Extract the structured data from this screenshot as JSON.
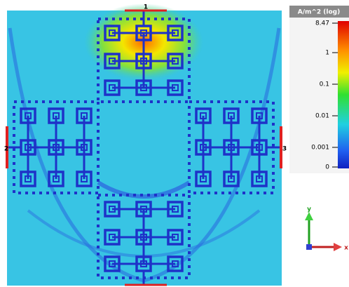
{
  "ports": [
    "1",
    "2",
    "3"
  ],
  "colorbar": {
    "title": "A/m^2 (log)",
    "ticks": [
      "8.47",
      "1",
      "0.1",
      "0.01",
      "0.001",
      "0"
    ]
  },
  "axes": {
    "y": "y",
    "x": "x"
  }
}
